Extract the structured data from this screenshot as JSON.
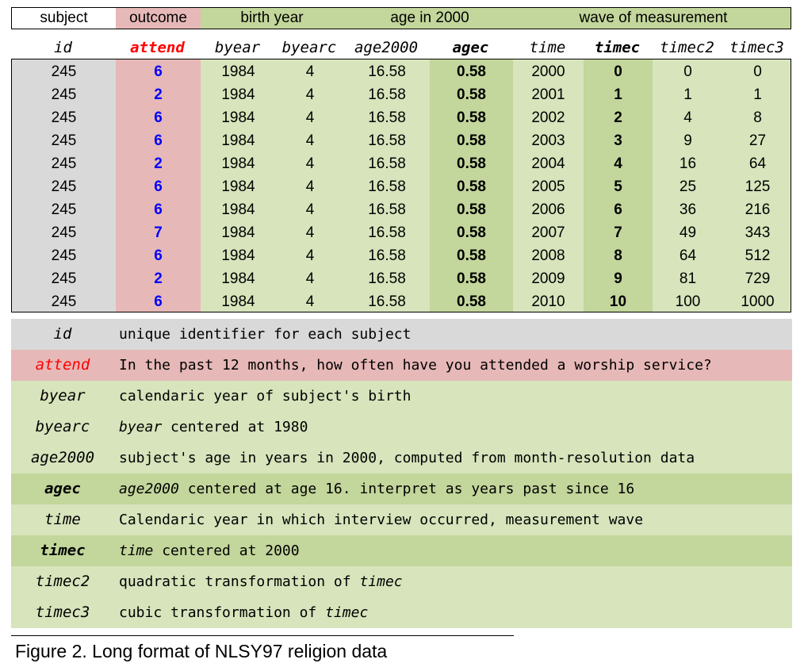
{
  "groups": {
    "subject": "subject",
    "outcome": "outcome",
    "birth_year": "birth year",
    "age_2000": "age in 2000",
    "wave": "wave of measurement"
  },
  "columns": {
    "id": "id",
    "attend": "attend",
    "byear": "byear",
    "byearc": "byearc",
    "age2000": "age2000",
    "agec": "agec",
    "time": "time",
    "timec": "timec",
    "timec2": "timec2",
    "timec3": "timec3"
  },
  "rows": [
    {
      "id": "245",
      "attend": "6",
      "byear": "1984",
      "byearc": "4",
      "age2000": "16.58",
      "agec": "0.58",
      "time": "2000",
      "timec": "0",
      "timec2": "0",
      "timec3": "0"
    },
    {
      "id": "245",
      "attend": "2",
      "byear": "1984",
      "byearc": "4",
      "age2000": "16.58",
      "agec": "0.58",
      "time": "2001",
      "timec": "1",
      "timec2": "1",
      "timec3": "1"
    },
    {
      "id": "245",
      "attend": "6",
      "byear": "1984",
      "byearc": "4",
      "age2000": "16.58",
      "agec": "0.58",
      "time": "2002",
      "timec": "2",
      "timec2": "4",
      "timec3": "8"
    },
    {
      "id": "245",
      "attend": "6",
      "byear": "1984",
      "byearc": "4",
      "age2000": "16.58",
      "agec": "0.58",
      "time": "2003",
      "timec": "3",
      "timec2": "9",
      "timec3": "27"
    },
    {
      "id": "245",
      "attend": "2",
      "byear": "1984",
      "byearc": "4",
      "age2000": "16.58",
      "agec": "0.58",
      "time": "2004",
      "timec": "4",
      "timec2": "16",
      "timec3": "64"
    },
    {
      "id": "245",
      "attend": "6",
      "byear": "1984",
      "byearc": "4",
      "age2000": "16.58",
      "agec": "0.58",
      "time": "2005",
      "timec": "5",
      "timec2": "25",
      "timec3": "125"
    },
    {
      "id": "245",
      "attend": "6",
      "byear": "1984",
      "byearc": "4",
      "age2000": "16.58",
      "agec": "0.58",
      "time": "2006",
      "timec": "6",
      "timec2": "36",
      "timec3": "216"
    },
    {
      "id": "245",
      "attend": "7",
      "byear": "1984",
      "byearc": "4",
      "age2000": "16.58",
      "agec": "0.58",
      "time": "2007",
      "timec": "7",
      "timec2": "49",
      "timec3": "343"
    },
    {
      "id": "245",
      "attend": "6",
      "byear": "1984",
      "byearc": "4",
      "age2000": "16.58",
      "agec": "0.58",
      "time": "2008",
      "timec": "8",
      "timec2": "64",
      "timec3": "512"
    },
    {
      "id": "245",
      "attend": "2",
      "byear": "1984",
      "byearc": "4",
      "age2000": "16.58",
      "agec": "0.58",
      "time": "2009",
      "timec": "9",
      "timec2": "81",
      "timec3": "729"
    },
    {
      "id": "245",
      "attend": "6",
      "byear": "1984",
      "byearc": "4",
      "age2000": "16.58",
      "agec": "0.58",
      "time": "2010",
      "timec": "10",
      "timec2": "100",
      "timec3": "1000"
    }
  ],
  "legend": {
    "id": {
      "key": "id",
      "desc": "unique identifier for each subject"
    },
    "attend": {
      "key": "attend",
      "desc": "In the past 12 months, how often have you attended a worship service?"
    },
    "byear": {
      "key": "byear",
      "desc": "calendaric year of subject's birth"
    },
    "byearc": {
      "key": "byearc",
      "ref": "byear",
      "desc": "centered at 1980"
    },
    "age2000": {
      "key": "age2000",
      "desc": "subject's age in years in 2000, computed from month-resolution data"
    },
    "agec": {
      "key": "agec",
      "ref": "age2000",
      "desc": "centered at age 16. interpret as years past since 16"
    },
    "time": {
      "key": "time",
      "desc": "Calendaric year in which interview occurred, measurement wave"
    },
    "timec": {
      "key": "timec",
      "ref": "time",
      "desc": "centered at 2000"
    },
    "timec2": {
      "key": "timec2",
      "desc_pre": "quadratic transformation of",
      "ref": "timec"
    },
    "timec3": {
      "key": "timec3",
      "desc_pre": "cubic transformation of",
      "ref": "timec"
    }
  },
  "caption": "Figure 2. Long format of  NLSY97 religion data",
  "colors": {
    "gray": "#d9d9d9",
    "outcome_red": "#e6b8b7",
    "light_green": "#d7e4bc",
    "dark_green": "#c3d69b",
    "attend_value_blue": "#0000ff",
    "attend_label_red": "#ff0000"
  }
}
